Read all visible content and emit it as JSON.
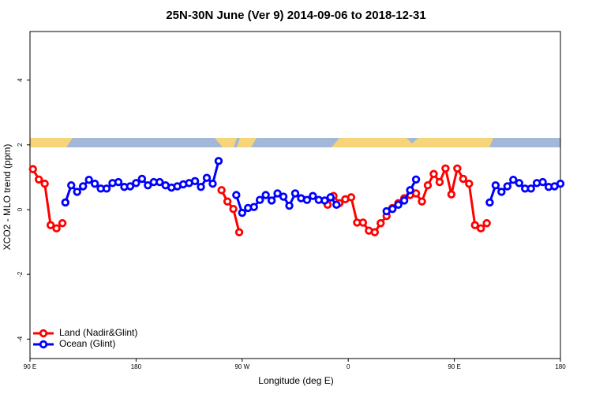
{
  "chart_data": {
    "type": "line",
    "title": "25N-30N June (Ver 9)   2014-09-06 to 2018-12-31",
    "xlabel": "Longitude (deg E)",
    "ylabel": "XCO2 - MLO trend (ppm)",
    "xlim": [
      90,
      540
    ],
    "ylim": [
      -4.6,
      5.5
    ],
    "xticks": [
      {
        "value": 90,
        "label": "90 E"
      },
      {
        "value": 180,
        "label": "180"
      },
      {
        "value": 270,
        "label": "90 W"
      },
      {
        "value": 360,
        "label": "0"
      },
      {
        "value": 450,
        "label": "90 E"
      },
      {
        "value": 540,
        "label": "180"
      }
    ],
    "yticks": [
      -4,
      -2,
      0,
      2,
      4
    ],
    "legend": "bottom-left",
    "series": [
      {
        "name": "Land (Nadir&Glint)",
        "color": "#ff0000",
        "x": [
          92.5,
          97.5,
          102.5,
          107.5,
          112.5,
          117.5,
          null,
          252.5,
          257.5,
          262.5,
          267.5,
          null,
          342.5,
          347.5,
          352.5,
          357.5,
          362.5,
          367.5,
          372.5,
          377.5,
          382.5,
          387.5,
          392.5,
          397.5,
          402.5,
          407.5,
          412.5,
          417.5,
          422.5,
          427.5,
          432.5,
          437.5,
          442.5,
          447.5,
          452.5,
          457.5,
          462.5,
          467.5,
          472.5,
          477.5
        ],
        "values": [
          1.25,
          0.93,
          0.8,
          -0.48,
          -0.58,
          -0.42,
          null,
          0.6,
          0.25,
          0.02,
          -0.7,
          null,
          0.15,
          0.42,
          0.2,
          0.32,
          0.38,
          -0.4,
          -0.4,
          -0.65,
          -0.7,
          -0.42,
          -0.2,
          0.05,
          0.2,
          0.35,
          0.45,
          0.5,
          0.25,
          0.75,
          1.1,
          0.85,
          1.27,
          0.47,
          1.27,
          0.95,
          0.8,
          -0.48,
          -0.58,
          -0.42
        ]
      },
      {
        "name": "Ocean (Glint)",
        "color": "#0000ff",
        "x": [
          120,
          125,
          130,
          135,
          140,
          145,
          150,
          155,
          160,
          165,
          170,
          175,
          180,
          185,
          190,
          195,
          200,
          205,
          210,
          215,
          220,
          225,
          230,
          235,
          240,
          245,
          250,
          null,
          265,
          270,
          275,
          280,
          285,
          290,
          295,
          300,
          305,
          310,
          315,
          320,
          325,
          330,
          335,
          340,
          345,
          350,
          null,
          392.5,
          397.5,
          402.5,
          407.5,
          412.5,
          417.5,
          null,
          480,
          485,
          490,
          495,
          500,
          505,
          510,
          515,
          520,
          525,
          530,
          535,
          540
        ],
        "values": [
          0.22,
          0.75,
          0.55,
          0.72,
          0.92,
          0.8,
          0.65,
          0.65,
          0.82,
          0.85,
          0.7,
          0.72,
          0.82,
          0.95,
          0.75,
          0.85,
          0.85,
          0.75,
          0.68,
          0.72,
          0.78,
          0.82,
          0.88,
          0.7,
          0.98,
          0.8,
          1.5,
          null,
          0.45,
          -0.1,
          0.05,
          0.08,
          0.3,
          0.45,
          0.28,
          0.5,
          0.4,
          0.12,
          0.5,
          0.35,
          0.3,
          0.42,
          0.3,
          0.28,
          0.38,
          0.15,
          null,
          -0.05,
          0.02,
          0.15,
          0.28,
          0.6,
          0.93,
          null,
          0.22,
          0.75,
          0.55,
          0.72,
          0.92,
          0.82,
          0.65,
          0.65,
          0.82,
          0.85,
          0.7,
          0.72,
          0.8
        ]
      }
    ]
  }
}
